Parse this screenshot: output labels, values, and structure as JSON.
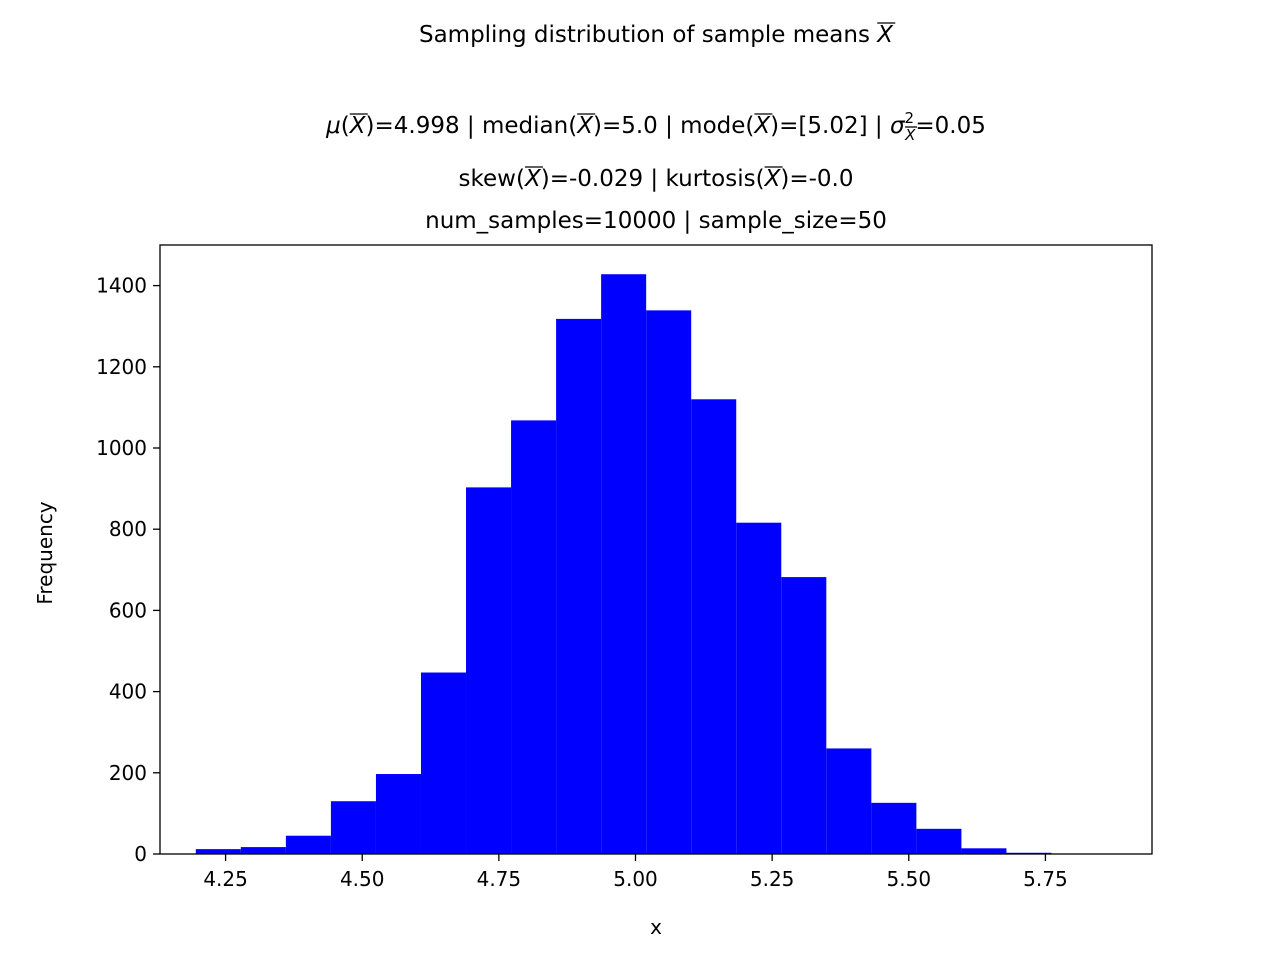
{
  "chart_data": {
    "type": "bar",
    "title": {
      "line1_prefix": "Sampling distribution of sample means ",
      "xbar_symbol": "X",
      "mu_symbol": "μ",
      "median_label": "median",
      "mode_label": "mode",
      "sigma_symbol": "σ",
      "sigma_power": "2",
      "mean_value": "4.998",
      "median_value": "5.0",
      "mode_value": "[5.02]",
      "variance_value": "0.05",
      "skew_label": "skew",
      "skew_value": "-0.029",
      "kurtosis_label": "kurtosis",
      "kurtosis_value": "-0.0",
      "line4": "num_samples=10000 | sample_size=50"
    },
    "xlabel": "x",
    "ylabel": "Frequency",
    "xlim": [
      4.13,
      5.945
    ],
    "ylim": [
      0,
      1500
    ],
    "xticks": [
      4.25,
      4.5,
      4.75,
      5.0,
      5.25,
      5.5,
      5.75
    ],
    "xtick_labels": [
      "4.25",
      "4.50",
      "4.75",
      "5.00",
      "5.25",
      "5.50",
      "5.75"
    ],
    "yticks": [
      0,
      200,
      400,
      600,
      800,
      1000,
      1200,
      1400
    ],
    "bin_edges": [
      4.1955,
      4.2779,
      4.3603,
      4.4427,
      4.5251,
      4.6075,
      4.6899,
      4.7723,
      4.8547,
      4.9371,
      5.0195,
      5.1019,
      5.1843,
      5.2667,
      5.3491,
      5.4315,
      5.5139,
      5.5963,
      5.6787,
      5.7611,
      5.8435
    ],
    "values": [
      12,
      17,
      45,
      130,
      197,
      447,
      903,
      1068,
      1318,
      1428,
      1339,
      1120,
      816,
      682,
      260,
      126,
      62,
      14,
      3,
      1
    ],
    "bar_color": "#0000ff"
  }
}
